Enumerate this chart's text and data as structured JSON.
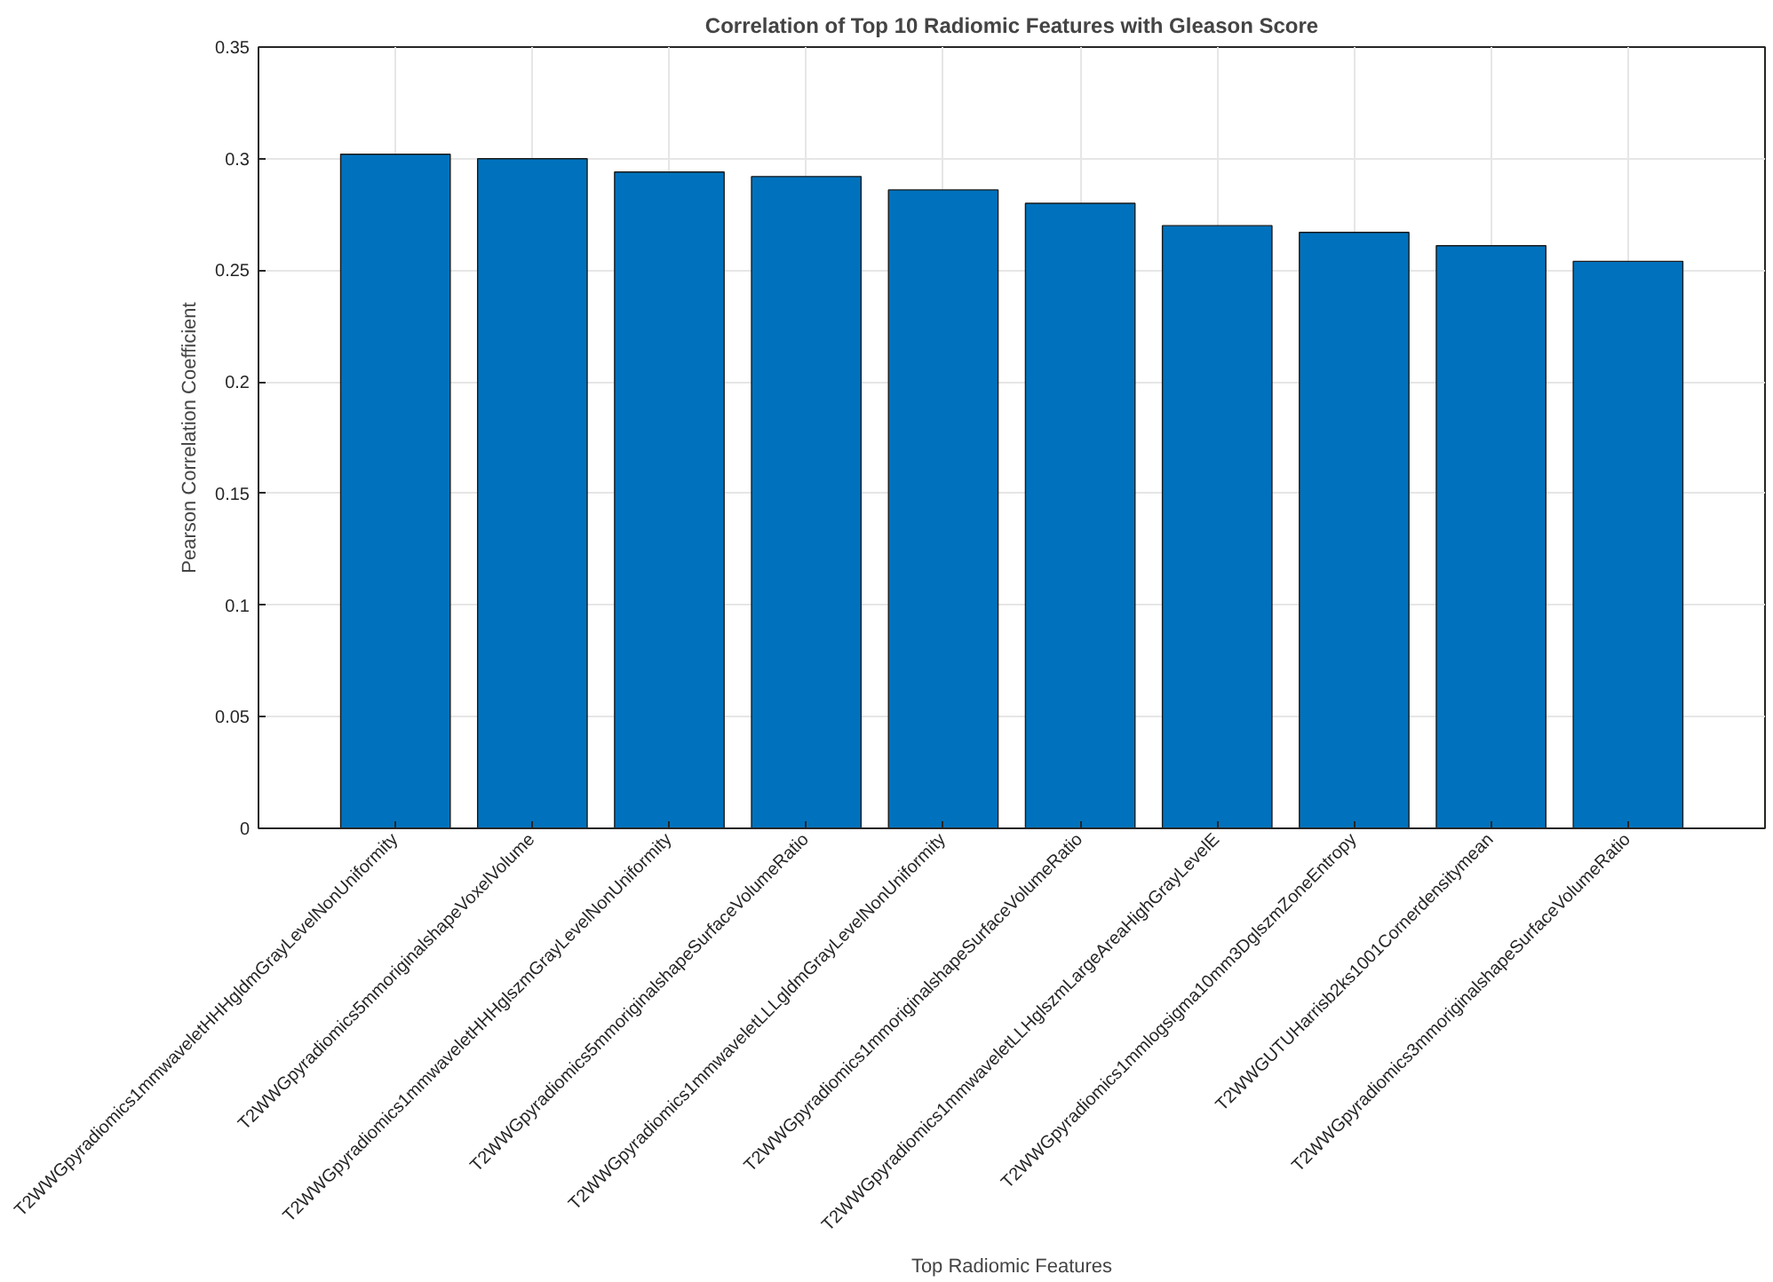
{
  "chart_data": {
    "type": "bar",
    "title": "Correlation of Top 10 Radiomic Features with Gleason Score",
    "xlabel": "Top Radiomic Features",
    "ylabel": "Pearson Correlation Coefficient",
    "categories": [
      "T2WWGpyradiomics1mmwaveletHHHgldmGrayLevelNonUniformity",
      "T2WWGpyradiomics5mmoriginalshapeVoxelVolume",
      "T2WWGpyradiomics1mmwaveletHHHglszmGrayLevelNonUniformity",
      "T2WWGpyradiomics5mmoriginalshapeSurfaceVolumeRatio",
      "T2WWGpyradiomics1mmwaveletLLLgldmGrayLevelNonUniformity",
      "T2WWGpyradiomics1mmoriginalshapeSurfaceVolumeRatio",
      "T2WWGpyradiomics1mmwaveletLLHglszmLargeAreaHighGrayLevelE",
      "T2WWGpyradiomics1mmlogsigma10mm3DglszmZoneEntropy",
      "T2WWGUTUHarrisb2ks1001Cornerdensitymean",
      "T2WWGpyradiomics3mmoriginalshapeSurfaceVolumeRatio"
    ],
    "values": [
      0.302,
      0.3,
      0.294,
      0.292,
      0.286,
      0.28,
      0.27,
      0.267,
      0.261,
      0.254
    ],
    "color": "#0072bd",
    "ylim": [
      0,
      0.35
    ],
    "yticks": [
      0,
      0.05,
      0.1,
      0.15,
      0.2,
      0.25,
      0.3,
      0.35
    ],
    "grid": true
  }
}
